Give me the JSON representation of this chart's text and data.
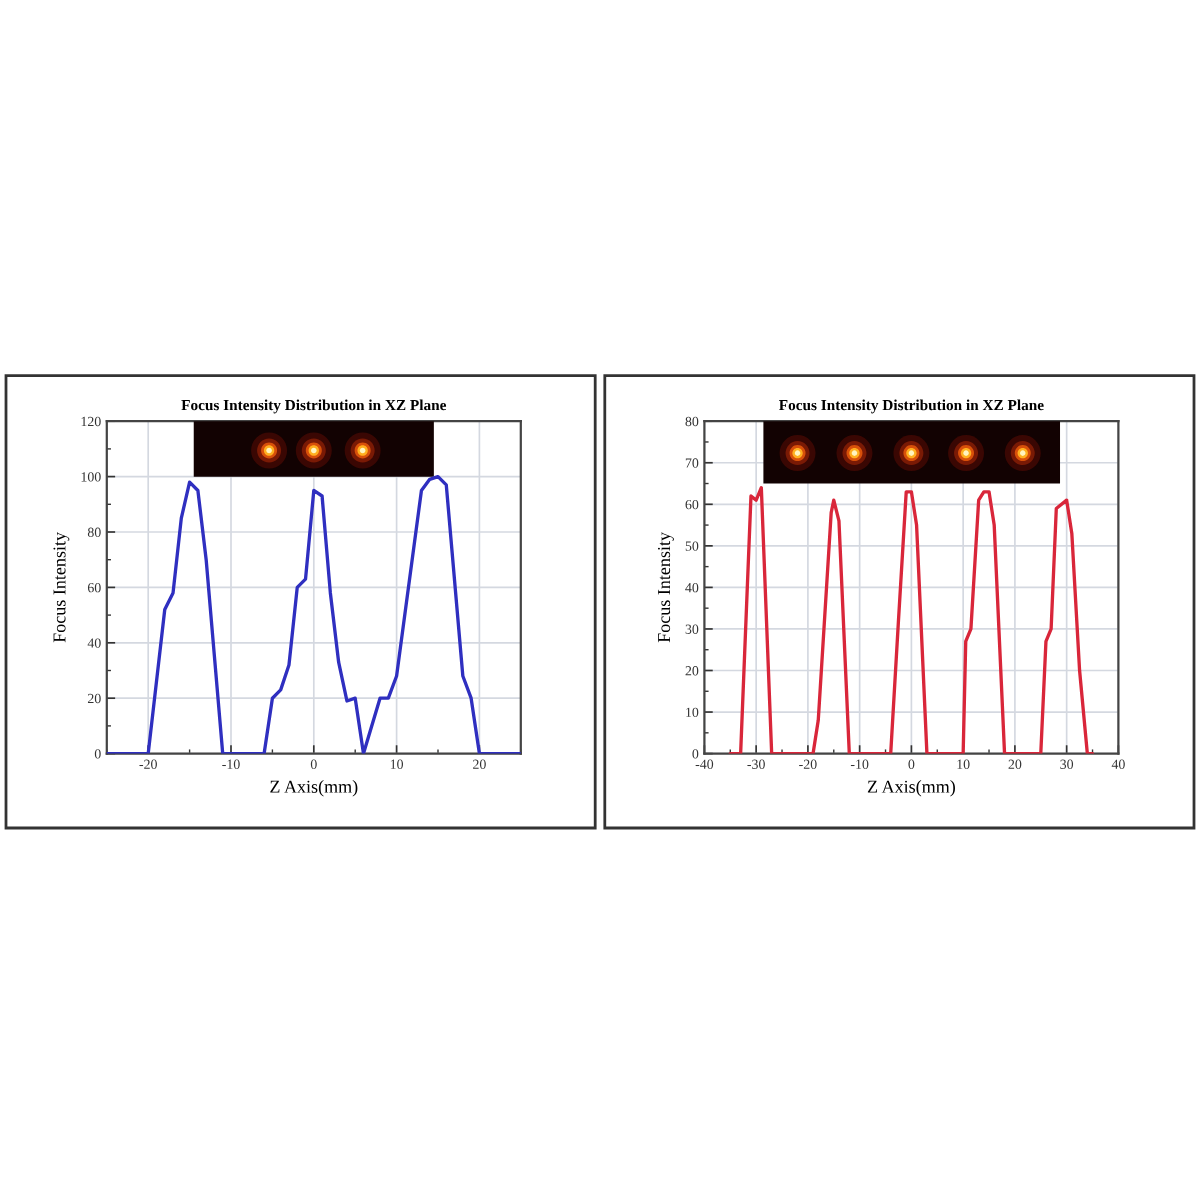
{
  "chart_data": [
    {
      "type": "line",
      "title": "Focus Intensity Distribution in XZ Plane",
      "xlabel": "Z Axis(mm)",
      "ylabel": "Focus Intensity",
      "color": "#2f2fc0",
      "x": [
        -25,
        -20,
        -18,
        -17,
        -16,
        -15,
        -14,
        -13,
        -12,
        -11,
        -6,
        -5,
        -4,
        -3,
        -2,
        -1,
        0,
        1,
        2,
        3,
        4,
        5,
        6,
        8,
        9,
        10,
        13,
        14,
        15,
        16,
        18,
        19,
        20,
        25
      ],
      "values": [
        0,
        0,
        52,
        58,
        85,
        98,
        95,
        70,
        35,
        0,
        0,
        20,
        23,
        32,
        60,
        63,
        95,
        93,
        58,
        33,
        19,
        20,
        0,
        20,
        20,
        28,
        95,
        99,
        100,
        97,
        28,
        20,
        0,
        0
      ],
      "xlim": [
        -25,
        25
      ],
      "ylim": [
        0,
        120
      ],
      "xticks": [
        -20,
        -10,
        0,
        10,
        20
      ],
      "yticks": [
        0,
        20,
        40,
        60,
        80,
        100,
        120
      ],
      "grid": true
    },
    {
      "type": "line",
      "title": "Focus Intensity Distribution in XZ Plane",
      "xlabel": "Z Axis(mm)",
      "ylabel": "Focus Intensity",
      "color": "#d9263a",
      "x": [
        -35,
        -33,
        -31,
        -30,
        -29,
        -27,
        -19,
        -18,
        -15.5,
        -15,
        -14,
        -12,
        -4,
        -2.5,
        -1,
        0,
        1,
        3,
        10,
        10.5,
        11.5,
        13,
        14,
        15,
        16,
        18,
        25,
        26,
        27,
        28,
        30,
        31,
        32.5,
        34,
        35
      ],
      "values": [
        0,
        0,
        62,
        61,
        64,
        0,
        0,
        8,
        58,
        61,
        56,
        0,
        0,
        32,
        63,
        63,
        55,
        0,
        0,
        27,
        30,
        61,
        63,
        63,
        55,
        0,
        0,
        27,
        30,
        59,
        61,
        53,
        20,
        0,
        0
      ],
      "xlim": [
        -40,
        40
      ],
      "ylim": [
        0,
        80
      ],
      "xticks": [
        -40,
        -30,
        -20,
        -10,
        0,
        10,
        20,
        30,
        40
      ],
      "yticks": [
        0,
        10,
        20,
        30,
        40,
        50,
        60,
        70,
        80
      ],
      "grid": true
    }
  ]
}
